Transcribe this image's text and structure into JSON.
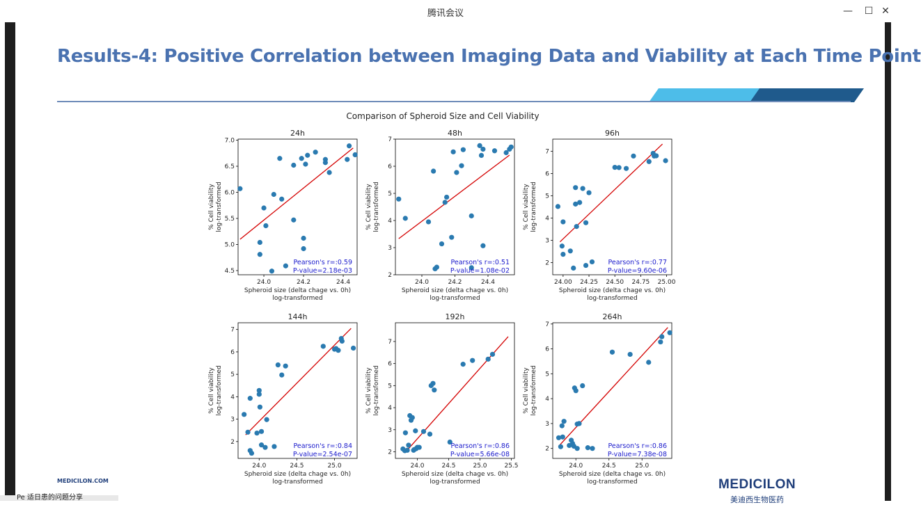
{
  "window": {
    "title": "腾讯会议",
    "minimize_glyph": "—",
    "maximize_glyph": "☐",
    "close_glyph": "✕"
  },
  "slide": {
    "title": "Results-4: Positive Correlation between Imaging Data and Viability at Each Time Point",
    "footer_url": "MEDICILON.COM",
    "logo_text": "MEDICILON",
    "logo_sub": "美迪西生物医药",
    "accent_colors": {
      "title": "#4a72b0",
      "band_light": "#4dbde9",
      "band_dark": "#1f5a8c"
    }
  },
  "taskbar": {
    "text": "Pe 适日患的问题分享"
  },
  "figure": {
    "suptitle": "Comparison of Spheroid Size and Cell Viability"
  },
  "chart_data": [
    {
      "type": "scatter",
      "title": "24h",
      "xlabel": "Spheroid size (delta chage vs. 0h)\nlog-transformed",
      "ylabel": "% Cell viability\nlog-transformed",
      "xlim": [
        23.87,
        24.47
      ],
      "ylim": [
        4.42,
        7.02
      ],
      "xticks": [
        "24.0",
        "24.2",
        "24.4"
      ],
      "xtick_values": [
        24.0,
        24.2,
        24.4
      ],
      "yticks": [
        "4.5",
        "5.0",
        "5.5",
        "6.0",
        "6.5",
        "7.0"
      ],
      "ytick_values": [
        4.5,
        5.0,
        5.5,
        6.0,
        6.5,
        7.0
      ],
      "points": [
        [
          23.88,
          6.07
        ],
        [
          23.98,
          5.04
        ],
        [
          23.98,
          4.81
        ],
        [
          24.0,
          5.7
        ],
        [
          24.01,
          5.36
        ],
        [
          24.04,
          4.49
        ],
        [
          24.05,
          5.96
        ],
        [
          24.08,
          6.65
        ],
        [
          24.09,
          5.87
        ],
        [
          24.11,
          4.59
        ],
        [
          24.15,
          6.52
        ],
        [
          24.15,
          5.47
        ],
        [
          24.19,
          6.65
        ],
        [
          24.2,
          5.12
        ],
        [
          24.2,
          4.92
        ],
        [
          24.21,
          6.54
        ],
        [
          24.22,
          6.71
        ],
        [
          24.26,
          6.77
        ],
        [
          24.31,
          6.63
        ],
        [
          24.31,
          6.57
        ],
        [
          24.33,
          6.38
        ],
        [
          24.42,
          6.63
        ],
        [
          24.43,
          6.89
        ],
        [
          24.46,
          6.72
        ]
      ],
      "fit": [
        [
          23.88,
          5.1
        ],
        [
          24.45,
          6.85
        ]
      ],
      "annotation": [
        "Pearson's r=:0.59",
        "P-value=2.18e-03"
      ]
    },
    {
      "type": "scatter",
      "title": "48h",
      "xlabel": "Spheroid size (delta chage vs. 0h)\nlog-transformed",
      "ylabel": "% Cell viability\nlog-transformed",
      "xlim": [
        23.84,
        24.56
      ],
      "ylim": [
        2.0,
        7.0
      ],
      "xticks": [
        "24.0",
        "24.2",
        "24.4"
      ],
      "xtick_values": [
        24.0,
        24.2,
        24.4
      ],
      "yticks": [
        "2",
        "3",
        "4",
        "5",
        "6",
        "7"
      ],
      "ytick_values": [
        2,
        3,
        4,
        5,
        6,
        7
      ],
      "points": [
        [
          23.86,
          4.79
        ],
        [
          23.9,
          4.08
        ],
        [
          24.04,
          3.95
        ],
        [
          24.07,
          5.82
        ],
        [
          24.08,
          2.22
        ],
        [
          24.09,
          2.28
        ],
        [
          24.12,
          3.14
        ],
        [
          24.14,
          4.67
        ],
        [
          24.15,
          4.86
        ],
        [
          24.18,
          3.38
        ],
        [
          24.19,
          6.53
        ],
        [
          24.21,
          5.77
        ],
        [
          24.24,
          6.02
        ],
        [
          24.25,
          6.61
        ],
        [
          24.3,
          4.17
        ],
        [
          24.3,
          2.26
        ],
        [
          24.35,
          6.76
        ],
        [
          24.36,
          6.4
        ],
        [
          24.37,
          6.63
        ],
        [
          24.37,
          3.07
        ],
        [
          24.44,
          6.57
        ],
        [
          24.51,
          6.5
        ],
        [
          24.53,
          6.63
        ],
        [
          24.54,
          6.71
        ]
      ],
      "fit": [
        [
          23.86,
          3.33
        ],
        [
          24.53,
          6.41
        ]
      ],
      "annotation": [
        "Pearson's r=:0.51",
        "P-value=1.08e-02"
      ]
    },
    {
      "type": "scatter",
      "title": "96h",
      "xlabel": "Spheroid size (delta chage vs. 0h)\nlog-transformed",
      "ylabel": "% Cell viability\nlog-transformed",
      "xlim": [
        23.9,
        25.05
      ],
      "ylim": [
        1.45,
        7.55
      ],
      "xticks": [
        "24.00",
        "24.25",
        "24.50",
        "24.75",
        "25.00"
      ],
      "xtick_values": [
        24.0,
        24.25,
        24.5,
        24.75,
        25.0
      ],
      "yticks": [
        "2",
        "3",
        "4",
        "5",
        "6",
        "7"
      ],
      "ytick_values": [
        2,
        3,
        4,
        5,
        6,
        7
      ],
      "points": [
        [
          23.95,
          4.52
        ],
        [
          23.99,
          2.74
        ],
        [
          24.0,
          2.37
        ],
        [
          24.0,
          3.83
        ],
        [
          24.07,
          2.52
        ],
        [
          24.1,
          1.75
        ],
        [
          24.12,
          4.63
        ],
        [
          24.12,
          5.37
        ],
        [
          24.13,
          3.62
        ],
        [
          24.16,
          4.7
        ],
        [
          24.19,
          5.33
        ],
        [
          24.22,
          1.87
        ],
        [
          24.22,
          3.79
        ],
        [
          24.25,
          5.14
        ],
        [
          24.28,
          2.03
        ],
        [
          24.5,
          6.28
        ],
        [
          24.54,
          6.27
        ],
        [
          24.61,
          6.23
        ],
        [
          24.68,
          6.79
        ],
        [
          24.83,
          6.54
        ],
        [
          24.87,
          6.91
        ],
        [
          24.88,
          6.79
        ],
        [
          24.9,
          6.8
        ],
        [
          24.99,
          6.58
        ]
      ],
      "fit": [
        [
          23.97,
          2.93
        ],
        [
          24.96,
          7.33
        ]
      ],
      "annotation": [
        "Pearson's r=:0.77",
        "P-value=9.60e-06"
      ]
    },
    {
      "type": "scatter",
      "title": "144h",
      "xlabel": "Spheroid size (delta chage vs. 0h)\nlog-transformed",
      "ylabel": "% Cell viability\nlog-transformed",
      "xlim": [
        23.72,
        25.3
      ],
      "ylim": [
        1.25,
        7.3
      ],
      "xticks": [
        "24.0",
        "24.5",
        "25.0"
      ],
      "xtick_values": [
        24.0,
        24.5,
        25.0
      ],
      "yticks": [
        "2",
        "3",
        "4",
        "5",
        "6",
        "7"
      ],
      "ytick_values": [
        2,
        3,
        4,
        5,
        6,
        7
      ],
      "points": [
        [
          23.8,
          3.21
        ],
        [
          23.85,
          2.42
        ],
        [
          23.88,
          3.93
        ],
        [
          23.88,
          1.6
        ],
        [
          23.9,
          1.48
        ],
        [
          23.97,
          2.38
        ],
        [
          24.0,
          4.11
        ],
        [
          24.0,
          4.28
        ],
        [
          24.01,
          3.54
        ],
        [
          24.03,
          2.45
        ],
        [
          24.03,
          1.85
        ],
        [
          24.08,
          1.74
        ],
        [
          24.1,
          2.98
        ],
        [
          24.2,
          1.78
        ],
        [
          24.25,
          5.42
        ],
        [
          24.3,
          4.97
        ],
        [
          24.35,
          5.37
        ],
        [
          24.85,
          6.25
        ],
        [
          25.0,
          6.12
        ],
        [
          25.02,
          6.15
        ],
        [
          25.05,
          6.07
        ],
        [
          25.09,
          6.6
        ],
        [
          25.1,
          6.48
        ],
        [
          25.25,
          6.17
        ]
      ],
      "fit": [
        [
          23.82,
          2.3
        ],
        [
          25.22,
          7.05
        ]
      ],
      "annotation": [
        "Pearson's r=:0.84",
        "P-value=2.54e-07"
      ]
    },
    {
      "type": "scatter",
      "title": "192h",
      "xlabel": "Spheroid size (delta chage vs. 0h)\nlog-transformed",
      "ylabel": "% Cell viability\nlog-transformed",
      "xlim": [
        23.65,
        25.55
      ],
      "ylim": [
        1.7,
        7.85
      ],
      "xticks": [
        "24.0",
        "24.5",
        "25.0",
        "25.5"
      ],
      "xtick_values": [
        24.0,
        24.5,
        25.0,
        25.5
      ],
      "yticks": [
        "2",
        "3",
        "4",
        "5",
        "6",
        "7"
      ],
      "ytick_values": [
        2,
        3,
        4,
        5,
        6,
        7
      ],
      "points": [
        [
          23.77,
          2.13
        ],
        [
          23.8,
          2.05
        ],
        [
          23.81,
          2.86
        ],
        [
          23.84,
          2.07
        ],
        [
          23.86,
          2.3
        ],
        [
          23.88,
          3.64
        ],
        [
          23.9,
          3.43
        ],
        [
          23.92,
          3.55
        ],
        [
          23.94,
          2.07
        ],
        [
          23.95,
          2.1
        ],
        [
          23.97,
          2.95
        ],
        [
          23.98,
          2.14
        ],
        [
          24.0,
          2.2
        ],
        [
          24.03,
          2.2
        ],
        [
          24.1,
          2.92
        ],
        [
          24.2,
          2.8
        ],
        [
          24.22,
          5.0
        ],
        [
          24.25,
          5.1
        ],
        [
          24.27,
          4.8
        ],
        [
          24.52,
          2.44
        ],
        [
          24.73,
          5.97
        ],
        [
          24.88,
          6.14
        ],
        [
          25.13,
          6.2
        ],
        [
          25.2,
          6.42
        ]
      ],
      "fit": [
        [
          23.8,
          1.95
        ],
        [
          25.45,
          7.22
        ]
      ],
      "annotation": [
        "Pearson's r=:0.86",
        "P-value=5.66e-08"
      ]
    },
    {
      "type": "scatter",
      "title": "264h",
      "xlabel": "Spheroid size (delta chage vs. 0h)\nlog-transformed",
      "ylabel": "% Cell viability\nlog-transformed",
      "xlim": [
        23.65,
        25.45
      ],
      "ylim": [
        1.6,
        7.05
      ],
      "xticks": [
        "24.0",
        "24.5",
        "25.0"
      ],
      "xtick_values": [
        24.0,
        24.5,
        25.0
      ],
      "yticks": [
        "2",
        "3",
        "4",
        "5",
        "6",
        "7"
      ],
      "ytick_values": [
        2,
        3,
        4,
        5,
        6,
        7
      ],
      "points": [
        [
          23.74,
          2.43
        ],
        [
          23.77,
          2.07
        ],
        [
          23.79,
          2.91
        ],
        [
          23.8,
          2.46
        ],
        [
          23.82,
          3.09
        ],
        [
          23.9,
          2.12
        ],
        [
          23.93,
          2.33
        ],
        [
          23.95,
          2.2
        ],
        [
          23.97,
          2.09
        ],
        [
          23.98,
          4.43
        ],
        [
          24.0,
          4.32
        ],
        [
          24.02,
          2.98
        ],
        [
          24.02,
          2.0
        ],
        [
          24.05,
          3.0
        ],
        [
          24.1,
          4.52
        ],
        [
          24.18,
          2.03
        ],
        [
          24.25,
          2.0
        ],
        [
          24.55,
          5.87
        ],
        [
          24.82,
          5.78
        ],
        [
          25.1,
          5.46
        ],
        [
          25.28,
          6.28
        ],
        [
          25.3,
          6.49
        ],
        [
          25.42,
          6.65
        ]
      ],
      "fit": [
        [
          23.75,
          2.12
        ],
        [
          25.39,
          6.86
        ]
      ],
      "annotation": [
        "Pearson's r=:0.86",
        "P-value=7.38e-08"
      ]
    }
  ]
}
